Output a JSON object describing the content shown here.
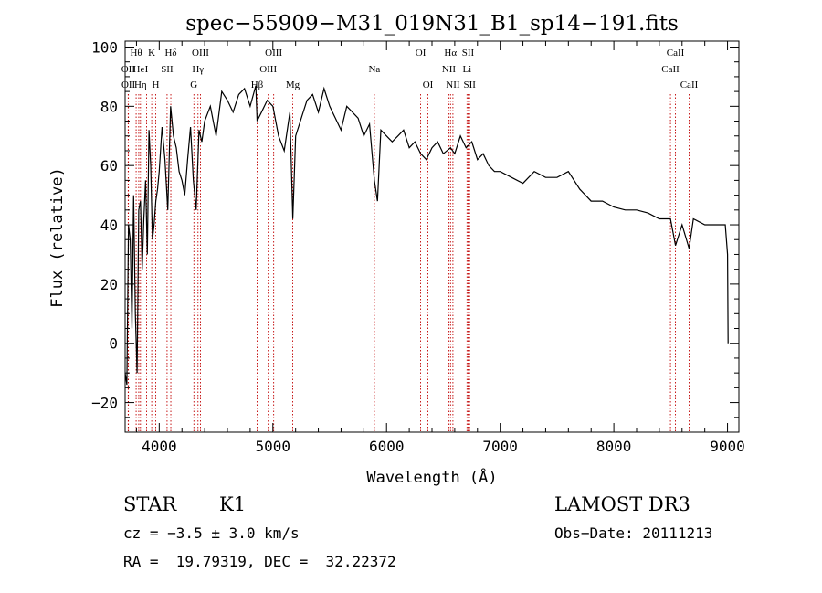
{
  "chart_data": {
    "type": "line",
    "title": "spec−55909−M31_019N31_B1_sp14−191.fits",
    "xlabel": "Wavelength (Å)",
    "ylabel": "Flux (relative)",
    "xlim": [
      3700,
      9100
    ],
    "ylim": [
      -30,
      102
    ],
    "x_ticks": [
      4000,
      5000,
      6000,
      7000,
      8000,
      9000
    ],
    "y_ticks": [
      -20,
      0,
      20,
      40,
      60,
      80,
      100
    ],
    "x_tick_labels": [
      "4000",
      "5000",
      "6000",
      "7000",
      "8000",
      "9000"
    ],
    "y_tick_labels": [
      "−20",
      "0",
      "20",
      "40",
      "60",
      "80",
      "100"
    ],
    "series": [
      {
        "name": "spectrum",
        "x": [
          3700,
          3715,
          3730,
          3745,
          3760,
          3775,
          3790,
          3805,
          3820,
          3835,
          3850,
          3865,
          3880,
          3895,
          3910,
          3925,
          3940,
          3955,
          3970,
          3985,
          4000,
          4025,
          4050,
          4075,
          4100,
          4125,
          4150,
          4175,
          4200,
          4225,
          4250,
          4275,
          4300,
          4325,
          4350,
          4375,
          4400,
          4450,
          4500,
          4550,
          4600,
          4650,
          4700,
          4750,
          4800,
          4850,
          4861,
          4900,
          4950,
          5000,
          5050,
          5100,
          5150,
          5175,
          5200,
          5250,
          5300,
          5350,
          5400,
          5450,
          5500,
          5550,
          5600,
          5650,
          5700,
          5750,
          5800,
          5850,
          5893,
          5920,
          5950,
          6000,
          6050,
          6100,
          6150,
          6200,
          6250,
          6300,
          6350,
          6400,
          6450,
          6500,
          6563,
          6600,
          6650,
          6700,
          6750,
          6800,
          6850,
          6900,
          6950,
          7000,
          7100,
          7200,
          7300,
          7400,
          7500,
          7600,
          7700,
          7800,
          7900,
          8000,
          8100,
          8200,
          8300,
          8400,
          8498,
          8542,
          8600,
          8662,
          8700,
          8800,
          8900,
          8980,
          9000,
          9005
        ],
        "y": [
          -10,
          -14,
          40,
          35,
          5,
          50,
          10,
          -10,
          45,
          48,
          25,
          42,
          55,
          30,
          72,
          60,
          35,
          40,
          48,
          52,
          58,
          73,
          62,
          45,
          80,
          70,
          66,
          58,
          55,
          50,
          62,
          73,
          55,
          45,
          72,
          68,
          75,
          80,
          70,
          85,
          82,
          78,
          84,
          86,
          80,
          87,
          75,
          78,
          82,
          80,
          70,
          65,
          78,
          42,
          70,
          76,
          82,
          84,
          78,
          86,
          80,
          76,
          72,
          80,
          78,
          76,
          70,
          74,
          55,
          48,
          72,
          70,
          68,
          70,
          72,
          66,
          68,
          64,
          62,
          66,
          68,
          64,
          66,
          64,
          70,
          66,
          68,
          62,
          64,
          60,
          58,
          58,
          56,
          54,
          58,
          56,
          56,
          58,
          52,
          48,
          48,
          46,
          45,
          45,
          44,
          42,
          42,
          33,
          40,
          32,
          42,
          40,
          40,
          40,
          30,
          0
        ]
      }
    ],
    "spectral_lines": [
      {
        "label": "Hθ",
        "wavelength": 3797,
        "row": 1
      },
      {
        "label": "OII",
        "wavelength": 3727,
        "row": 2
      },
      {
        "label": "OII",
        "wavelength": 3729,
        "row": 3
      },
      {
        "label": "He",
        "wavelength": 3820,
        "row": 2
      },
      {
        "label": "Hη",
        "wavelength": 3835,
        "row": 3
      },
      {
        "label": "K",
        "wavelength": 3934,
        "row": 1
      },
      {
        "label": "H",
        "wavelength": 3969,
        "row": 3
      },
      {
        "label": "I",
        "wavelength": 3889,
        "row": 2
      },
      {
        "label": "SII",
        "wavelength": 4069,
        "row": 2
      },
      {
        "label": "Hδ",
        "wavelength": 4102,
        "row": 1
      },
      {
        "label": "OIII",
        "wavelength": 4363,
        "row": 1
      },
      {
        "label": "Hγ",
        "wavelength": 4341,
        "row": 2
      },
      {
        "label": "G",
        "wavelength": 4305,
        "row": 3
      },
      {
        "label": "OIII",
        "wavelength": 5007,
        "row": 1
      },
      {
        "label": "OIII",
        "wavelength": 4959,
        "row": 2
      },
      {
        "label": "Hβ",
        "wavelength": 4861,
        "row": 3
      },
      {
        "label": "Mg",
        "wavelength": 5175,
        "row": 3
      },
      {
        "label": "Na",
        "wavelength": 5893,
        "row": 2
      },
      {
        "label": "OI",
        "wavelength": 6300,
        "row": 1
      },
      {
        "label": "OI",
        "wavelength": 6364,
        "row": 3
      },
      {
        "label": "Hα",
        "wavelength": 6563,
        "row": 1
      },
      {
        "label": "SII",
        "wavelength": 6717,
        "row": 1
      },
      {
        "label": "NII",
        "wavelength": 6548,
        "row": 2
      },
      {
        "label": "Li",
        "wavelength": 6708,
        "row": 2
      },
      {
        "label": "NII",
        "wavelength": 6584,
        "row": 3
      },
      {
        "label": "SII",
        "wavelength": 6731,
        "row": 3
      },
      {
        "label": "CaII",
        "wavelength": 8542,
        "row": 1
      },
      {
        "label": "CaII",
        "wavelength": 8498,
        "row": 2
      },
      {
        "label": "CaII",
        "wavelength": 8662,
        "row": 3
      }
    ]
  },
  "info": {
    "class_label": "STAR",
    "subclass_label": "K1",
    "survey_label": "LAMOST DR3",
    "cz_text": "cz = −3.5 ± 3.0 km/s",
    "obs_date_text": "Obs−Date: 20111213",
    "coords_text": "RA =  19.79319, DEC =  32.22372"
  },
  "colors": {
    "spectrum": "#000000",
    "line_marker": "#c00000",
    "axes": "#000000"
  }
}
